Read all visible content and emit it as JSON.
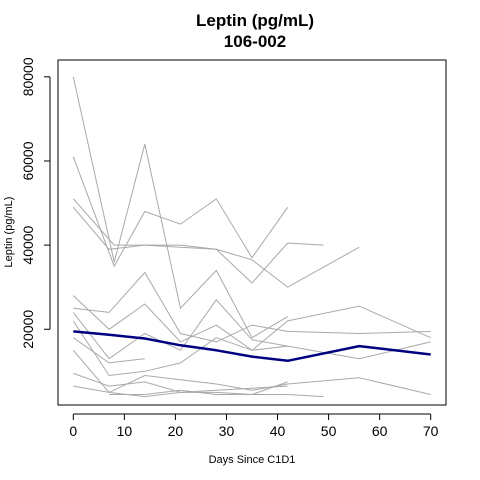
{
  "chart_data": {
    "type": "line",
    "title": "Leptin (pg/mL)",
    "subtitle": "106-002",
    "xlabel": "Days Since C1D1",
    "ylabel": "Leptin (pg/mL)",
    "xlim": [
      -3,
      73
    ],
    "ylim": [
      2000,
      84000
    ],
    "x_ticks": [
      0,
      10,
      20,
      30,
      40,
      50,
      60,
      70
    ],
    "y_ticks": [
      20000,
      40000,
      60000,
      80000
    ],
    "grid": false,
    "legend": "none",
    "background_color": "#a9a9a9",
    "highlight_color": "#000080",
    "background_series": [
      {
        "x": [
          0,
          8,
          14,
          21,
          28,
          35,
          42
        ],
        "y": [
          80000,
          36000,
          64000,
          25000,
          34000,
          18000,
          23000
        ]
      },
      {
        "x": [
          0,
          8,
          14,
          21,
          28,
          35,
          42
        ],
        "y": [
          61000,
          35000,
          48000,
          45000,
          51000,
          37000,
          49000
        ]
      },
      {
        "x": [
          0,
          8,
          14,
          21,
          28,
          35,
          42,
          49
        ],
        "y": [
          51000,
          40000,
          40000,
          39500,
          39000,
          31000,
          40500,
          40000
        ]
      },
      {
        "x": [
          0,
          7,
          14,
          21,
          28,
          35,
          42,
          56
        ],
        "y": [
          49000,
          39000,
          40000,
          40000,
          39000,
          36500,
          30000,
          39500
        ]
      },
      {
        "x": [
          0,
          7,
          14,
          21,
          28,
          35,
          42,
          56,
          70
        ],
        "y": [
          28000,
          20000,
          26000,
          17000,
          21000,
          15000,
          22000,
          25500,
          18000
        ]
      },
      {
        "x": [
          0,
          7,
          14,
          21,
          28,
          35,
          42,
          56,
          70
        ],
        "y": [
          25000,
          24000,
          33500,
          19000,
          17000,
          21000,
          19500,
          19000,
          19500
        ]
      },
      {
        "x": [
          0,
          7,
          14,
          21,
          28,
          35,
          42,
          56,
          70
        ],
        "y": [
          24000,
          13000,
          19000,
          15000,
          27000,
          17500,
          16000,
          13000,
          17000
        ]
      },
      {
        "x": [
          0,
          7,
          14,
          21,
          28,
          35,
          42
        ],
        "y": [
          22000,
          9000,
          10000,
          12000,
          18000,
          15000,
          16000
        ]
      },
      {
        "x": [
          0,
          7,
          14
        ],
        "y": [
          18000,
          12000,
          13000
        ]
      },
      {
        "x": [
          0,
          7,
          14,
          21,
          28,
          35,
          42,
          56,
          70
        ],
        "y": [
          15000,
          5000,
          9000,
          8000,
          7000,
          5500,
          7000,
          8500,
          4500
        ]
      },
      {
        "x": [
          0,
          7,
          14,
          21,
          28,
          35,
          42
        ],
        "y": [
          9500,
          6500,
          7500,
          5000,
          5000,
          4500,
          7500
        ]
      },
      {
        "x": [
          0,
          7,
          14,
          21,
          28,
          35,
          42
        ],
        "y": [
          6500,
          5000,
          4000,
          5000,
          5500,
          6000,
          6500
        ]
      },
      {
        "x": [
          7,
          14,
          21,
          28,
          35,
          42,
          49
        ],
        "y": [
          4500,
          4500,
          5500,
          4500,
          4500,
          4500,
          4000
        ]
      }
    ],
    "series": [
      {
        "x": [
          0,
          7,
          14,
          21,
          28,
          35,
          42,
          56,
          70
        ],
        "y": [
          19500,
          18700,
          17800,
          16200,
          15000,
          13500,
          12500,
          16000,
          14000
        ]
      }
    ]
  }
}
